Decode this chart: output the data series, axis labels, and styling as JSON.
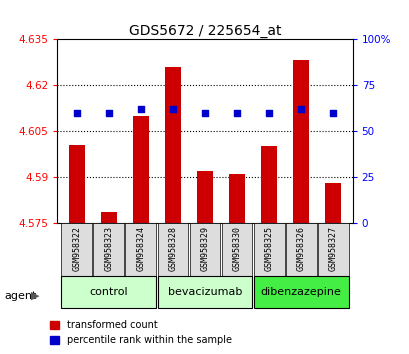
{
  "title": "GDS5672 / 225654_at",
  "samples": [
    "GSM958322",
    "GSM958323",
    "GSM958324",
    "GSM958328",
    "GSM958329",
    "GSM958330",
    "GSM958325",
    "GSM958326",
    "GSM958327"
  ],
  "red_values": [
    4.6005,
    4.5785,
    4.61,
    4.626,
    4.592,
    4.591,
    4.6,
    4.628,
    4.588
  ],
  "blue_values": [
    60,
    60,
    62,
    62,
    60,
    60,
    60,
    62,
    60
  ],
  "ylim_left": [
    4.575,
    4.635
  ],
  "ylim_right": [
    0,
    100
  ],
  "yticks_left": [
    4.575,
    4.59,
    4.605,
    4.62,
    4.635
  ],
  "yticks_right": [
    0,
    25,
    50,
    75,
    100
  ],
  "ytick_labels_left": [
    "4.575",
    "4.59",
    "4.605",
    "4.62",
    "4.635"
  ],
  "ytick_labels_right": [
    "0",
    "25",
    "50",
    "75",
    "100%"
  ],
  "hlines": [
    4.59,
    4.605,
    4.62
  ],
  "groups": [
    {
      "label": "control",
      "indices": [
        0,
        1,
        2
      ],
      "color": "#ccffcc"
    },
    {
      "label": "bevacizumab",
      "indices": [
        3,
        4,
        5
      ],
      "color": "#ccffcc"
    },
    {
      "label": "dibenzazepine",
      "indices": [
        6,
        7,
        8
      ],
      "color": "#44ee44"
    }
  ],
  "bar_color": "#cc0000",
  "blue_color": "#0000cc",
  "bar_width": 0.5,
  "legend_red": "transformed count",
  "legend_blue": "percentile rank within the sample",
  "bg_color": "#dddddd"
}
